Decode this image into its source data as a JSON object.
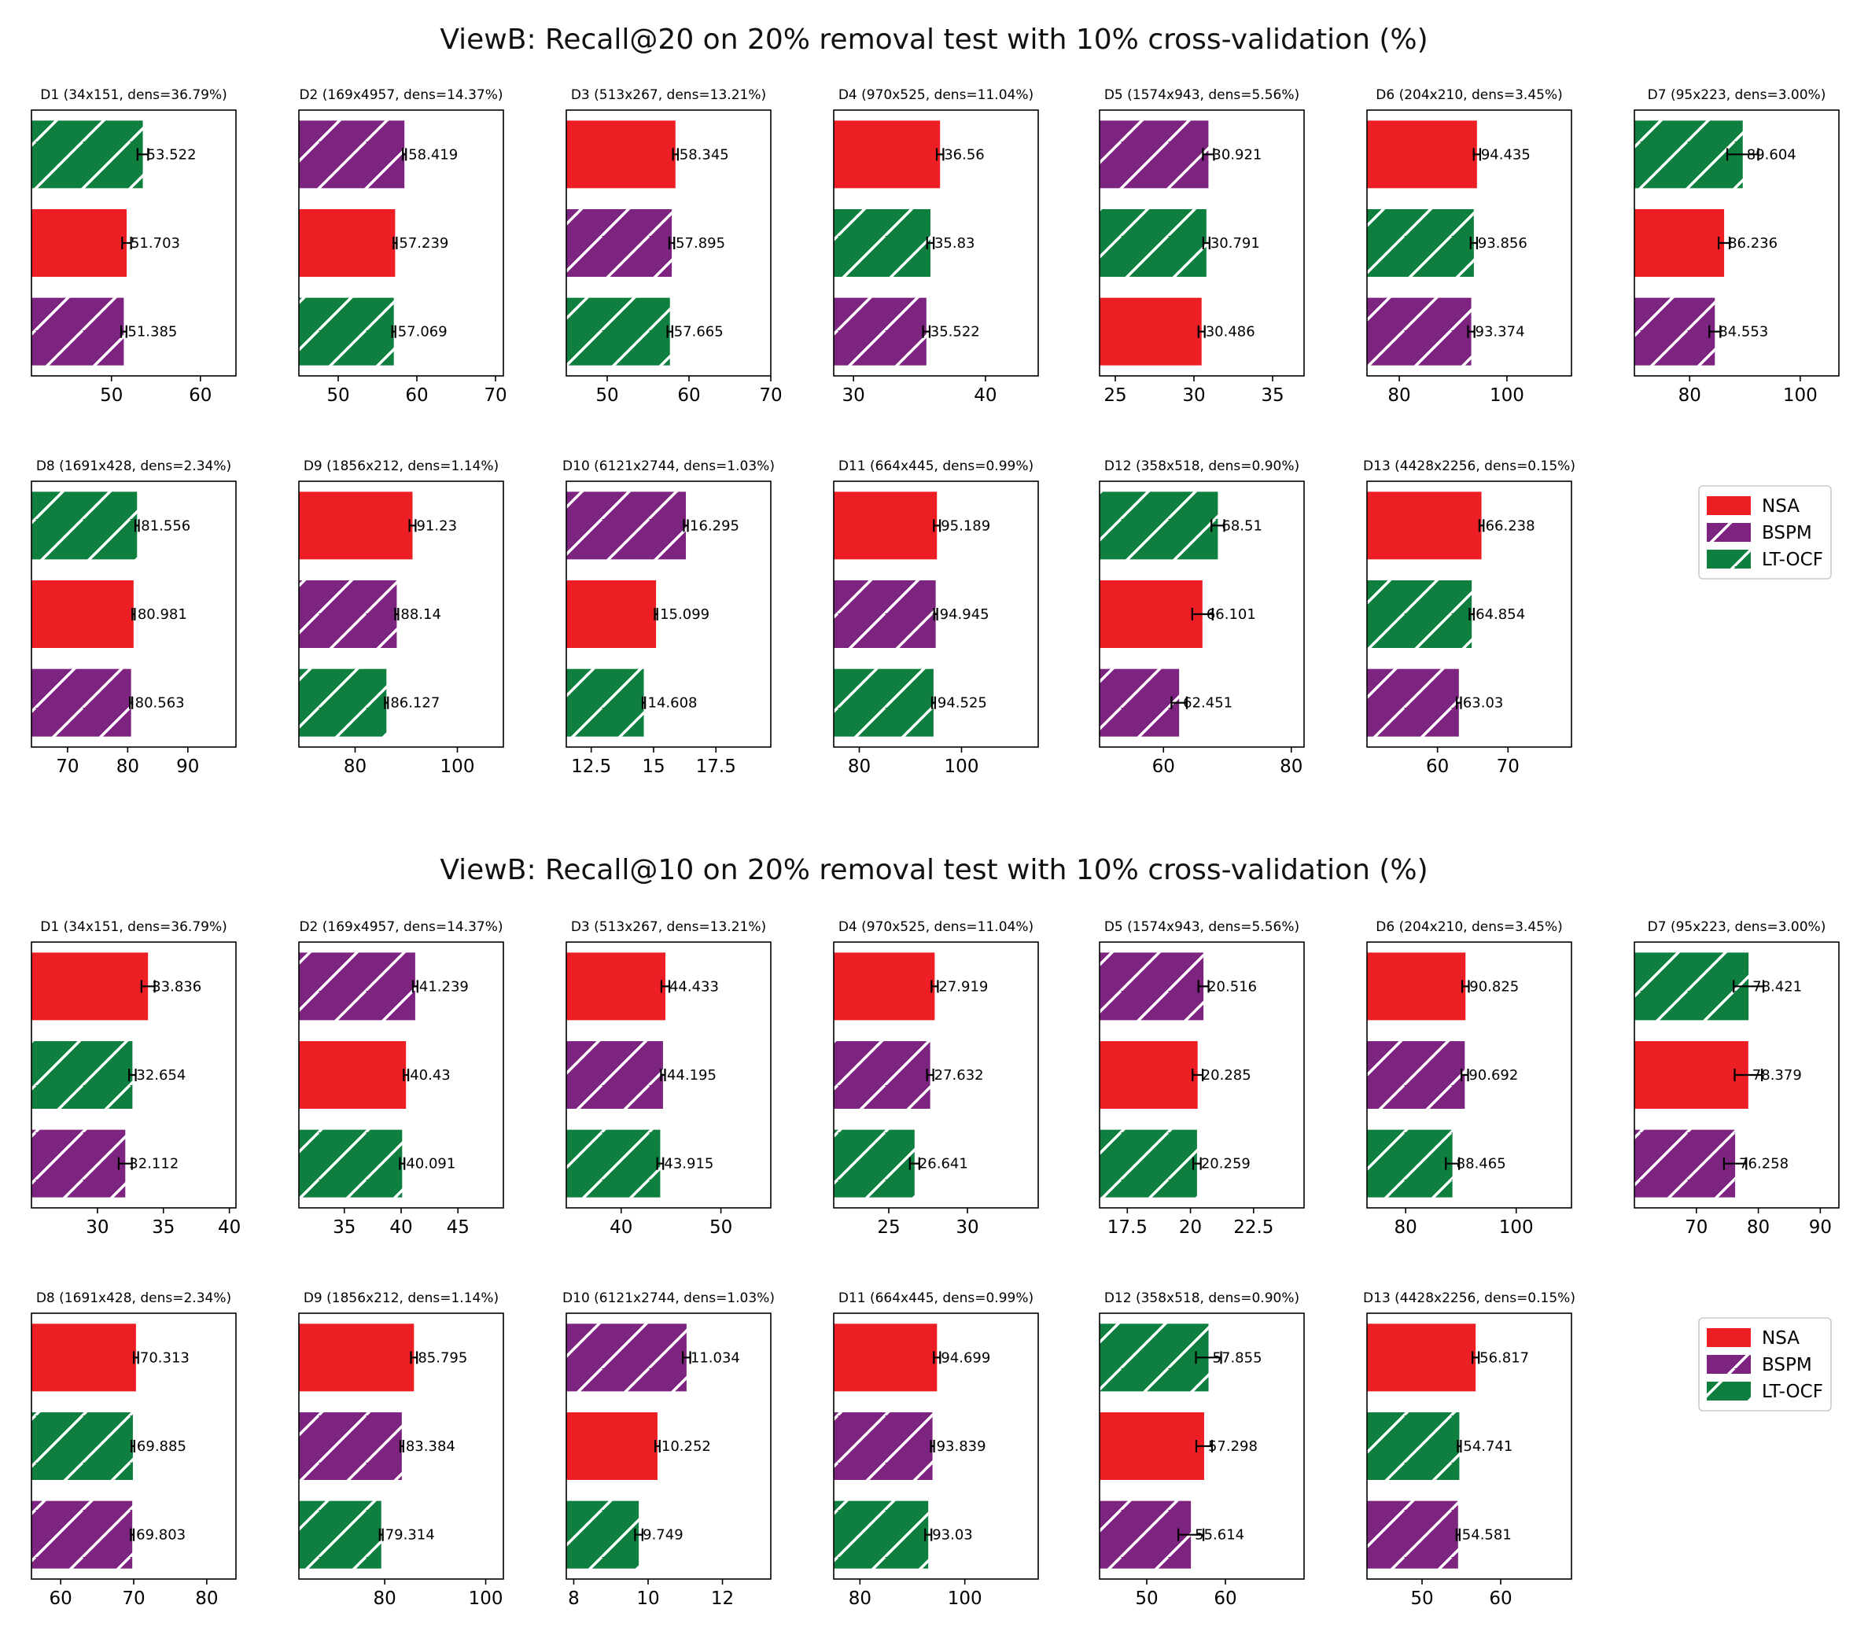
{
  "colors": {
    "NSA": "#ee1f24",
    "BSPM": "#7d2480",
    "LT-OCF": "#0f7f3f"
  },
  "legend": [
    "NSA",
    "BSPM",
    "LT-OCF"
  ],
  "chart_data": [
    {
      "type": "bar",
      "title": "ViewB: Recall@20 on 20% removal test with 10% cross-validation (%)",
      "panels": [
        {
          "title": "D1 (34x151, dens=36.79%)",
          "xlim": [
            41,
            64
          ],
          "ticks": [
            50,
            60
          ],
          "bars": [
            {
              "series": "LT-OCF",
              "value": 53.522,
              "err": 0.6,
              "label": "53.522"
            },
            {
              "series": "NSA",
              "value": 51.703,
              "err": 0.5,
              "label": "51.703"
            },
            {
              "series": "BSPM",
              "value": 51.385,
              "err": 0.3,
              "label": "51.385"
            }
          ]
        },
        {
          "title": "D2 (169x4957, dens=14.37%)",
          "xlim": [
            45,
            71
          ],
          "ticks": [
            50,
            60,
            70
          ],
          "bars": [
            {
              "series": "BSPM",
              "value": 58.419,
              "err": 0.2,
              "label": "58.419"
            },
            {
              "series": "NSA",
              "value": 57.239,
              "err": 0.2,
              "label": "57.239"
            },
            {
              "series": "LT-OCF",
              "value": 57.069,
              "err": 0.2,
              "label": "57.069"
            }
          ]
        },
        {
          "title": "D3 (513x267, dens=13.21%)",
          "xlim": [
            45,
            70
          ],
          "ticks": [
            50,
            60,
            70
          ],
          "bars": [
            {
              "series": "NSA",
              "value": 58.345,
              "err": 0.3,
              "label": "58.345"
            },
            {
              "series": "BSPM",
              "value": 57.895,
              "err": 0.3,
              "label": "57.895"
            },
            {
              "series": "LT-OCF",
              "value": 57.665,
              "err": 0.3,
              "label": "57.665"
            }
          ]
        },
        {
          "title": "D4 (970x525, dens=11.04%)",
          "xlim": [
            28.5,
            44
          ],
          "ticks": [
            30,
            40
          ],
          "bars": [
            {
              "series": "NSA",
              "value": 36.56,
              "err": 0.25,
              "label": "36.56"
            },
            {
              "series": "LT-OCF",
              "value": 35.83,
              "err": 0.25,
              "label": "35.83"
            },
            {
              "series": "BSPM",
              "value": 35.522,
              "err": 0.25,
              "label": "35.522"
            }
          ]
        },
        {
          "title": "D5 (1574x943, dens=5.56%)",
          "xlim": [
            24,
            37
          ],
          "ticks": [
            25,
            30,
            35
          ],
          "bars": [
            {
              "series": "BSPM",
              "value": 30.921,
              "err": 0.35,
              "label": "30.921"
            },
            {
              "series": "LT-OCF",
              "value": 30.791,
              "err": 0.2,
              "label": "30.791"
            },
            {
              "series": "NSA",
              "value": 30.486,
              "err": 0.2,
              "label": "30.486"
            }
          ]
        },
        {
          "title": "D6 (204x210, dens=3.45%)",
          "xlim": [
            74,
            112
          ],
          "ticks": [
            80,
            100
          ],
          "bars": [
            {
              "series": "NSA",
              "value": 94.435,
              "err": 0.6,
              "label": "94.435"
            },
            {
              "series": "LT-OCF",
              "value": 93.856,
              "err": 0.6,
              "label": "93.856"
            },
            {
              "series": "BSPM",
              "value": 93.374,
              "err": 0.6,
              "label": "93.374"
            }
          ]
        },
        {
          "title": "D7 (95x223, dens=3.00%)",
          "xlim": [
            70,
            107
          ],
          "ticks": [
            80,
            100
          ],
          "bars": [
            {
              "series": "LT-OCF",
              "value": 89.604,
              "err": 2.8,
              "label": "89.604"
            },
            {
              "series": "NSA",
              "value": 86.236,
              "err": 1.0,
              "label": "86.236"
            },
            {
              "series": "BSPM",
              "value": 84.553,
              "err": 1.0,
              "label": "84.553"
            }
          ]
        },
        {
          "title": "D8 (1691x428, dens=2.34%)",
          "xlim": [
            64,
            98
          ],
          "ticks": [
            70,
            80,
            90
          ],
          "bars": [
            {
              "series": "LT-OCF",
              "value": 81.556,
              "err": 0.3,
              "label": "81.556"
            },
            {
              "series": "NSA",
              "value": 80.981,
              "err": 0.2,
              "label": "80.981"
            },
            {
              "series": "BSPM",
              "value": 80.563,
              "err": 0.2,
              "label": "80.563"
            }
          ]
        },
        {
          "title": "D9 (1856x212, dens=1.14%)",
          "xlim": [
            69,
            109
          ],
          "ticks": [
            80,
            100
          ],
          "bars": [
            {
              "series": "NSA",
              "value": 91.23,
              "err": 0.6,
              "label": "91.23"
            },
            {
              "series": "BSPM",
              "value": 88.14,
              "err": 0.3,
              "label": "88.14"
            },
            {
              "series": "LT-OCF",
              "value": 86.127,
              "err": 0.3,
              "label": "86.127"
            }
          ]
        },
        {
          "title": "D10 (6121x2744, dens=1.03%)",
          "xlim": [
            11.5,
            19.7
          ],
          "ticks": [
            12.5,
            15.0,
            17.5
          ],
          "bars": [
            {
              "series": "BSPM",
              "value": 16.295,
              "err": 0.08,
              "label": "16.295"
            },
            {
              "series": "NSA",
              "value": 15.099,
              "err": 0.05,
              "label": "15.099"
            },
            {
              "series": "LT-OCF",
              "value": 14.608,
              "err": 0.05,
              "label": "14.608"
            }
          ]
        },
        {
          "title": "D11 (664x445, dens=0.99%)",
          "xlim": [
            75,
            115
          ],
          "ticks": [
            80,
            100
          ],
          "bars": [
            {
              "series": "NSA",
              "value": 95.189,
              "err": 0.6,
              "label": "95.189"
            },
            {
              "series": "BSPM",
              "value": 94.945,
              "err": 0.3,
              "label": "94.945"
            },
            {
              "series": "LT-OCF",
              "value": 94.525,
              "err": 0.3,
              "label": "94.525"
            }
          ]
        },
        {
          "title": "D12 (358x518, dens=0.90%)",
          "xlim": [
            50,
            82
          ],
          "ticks": [
            60,
            80
          ],
          "bars": [
            {
              "series": "LT-OCF",
              "value": 68.51,
              "err": 1.0,
              "label": "68.51"
            },
            {
              "series": "NSA",
              "value": 66.101,
              "err": 1.6,
              "label": "66.101"
            },
            {
              "series": "BSPM",
              "value": 62.451,
              "err": 1.2,
              "label": "62.451"
            }
          ]
        },
        {
          "title": "D13 (4428x2256, dens=0.15%)",
          "xlim": [
            50,
            79
          ],
          "ticks": [
            60,
            70
          ],
          "bars": [
            {
              "series": "NSA",
              "value": 66.238,
              "err": 0.3,
              "label": "66.238"
            },
            {
              "series": "LT-OCF",
              "value": 64.854,
              "err": 0.3,
              "label": "64.854"
            },
            {
              "series": "BSPM",
              "value": 63.03,
              "err": 0.3,
              "label": "63.03"
            }
          ]
        }
      ]
    },
    {
      "type": "bar",
      "title": "ViewB: Recall@10 on 20% removal test with 10% cross-validation (%)",
      "panels": [
        {
          "title": "D1 (34x151, dens=36.79%)",
          "xlim": [
            25,
            40.5
          ],
          "ticks": [
            30,
            35,
            40
          ],
          "bars": [
            {
              "series": "NSA",
              "value": 33.836,
              "err": 0.5,
              "label": "33.836"
            },
            {
              "series": "LT-OCF",
              "value": 32.654,
              "err": 0.25,
              "label": "32.654"
            },
            {
              "series": "BSPM",
              "value": 32.112,
              "err": 0.5,
              "label": "32.112"
            }
          ]
        },
        {
          "title": "D2 (169x4957, dens=14.37%)",
          "xlim": [
            31,
            49
          ],
          "ticks": [
            35,
            40,
            45
          ],
          "bars": [
            {
              "series": "BSPM",
              "value": 41.239,
              "err": 0.2,
              "label": "41.239"
            },
            {
              "series": "NSA",
              "value": 40.43,
              "err": 0.2,
              "label": "40.43"
            },
            {
              "series": "LT-OCF",
              "value": 40.091,
              "err": 0.2,
              "label": "40.091"
            }
          ]
        },
        {
          "title": "D3 (513x267, dens=13.21%)",
          "xlim": [
            34.5,
            55
          ],
          "ticks": [
            40,
            50
          ],
          "bars": [
            {
              "series": "NSA",
              "value": 44.433,
              "err": 0.4,
              "label": "44.433"
            },
            {
              "series": "BSPM",
              "value": 44.195,
              "err": 0.2,
              "label": "44.195"
            },
            {
              "series": "LT-OCF",
              "value": 43.915,
              "err": 0.3,
              "label": "43.915"
            }
          ]
        },
        {
          "title": "D4 (970x525, dens=11.04%)",
          "xlim": [
            21.5,
            34.5
          ],
          "ticks": [
            25,
            30
          ],
          "bars": [
            {
              "series": "NSA",
              "value": 27.919,
              "err": 0.2,
              "label": "27.919"
            },
            {
              "series": "BSPM",
              "value": 27.632,
              "err": 0.2,
              "label": "27.632"
            },
            {
              "series": "LT-OCF",
              "value": 26.641,
              "err": 0.3,
              "label": "26.641"
            }
          ]
        },
        {
          "title": "D5 (1574x943, dens=5.56%)",
          "xlim": [
            16.4,
            24.5
          ],
          "ticks": [
            17.5,
            20.0,
            22.5
          ],
          "bars": [
            {
              "series": "BSPM",
              "value": 20.516,
              "err": 0.2,
              "label": "20.516"
            },
            {
              "series": "NSA",
              "value": 20.285,
              "err": 0.2,
              "label": "20.285"
            },
            {
              "series": "LT-OCF",
              "value": 20.259,
              "err": 0.15,
              "label": "20.259"
            }
          ]
        },
        {
          "title": "D6 (204x210, dens=3.45%)",
          "xlim": [
            73,
            110
          ],
          "ticks": [
            80,
            100
          ],
          "bars": [
            {
              "series": "NSA",
              "value": 90.825,
              "err": 0.6,
              "label": "90.825"
            },
            {
              "series": "BSPM",
              "value": 90.692,
              "err": 0.6,
              "label": "90.692"
            },
            {
              "series": "LT-OCF",
              "value": 88.465,
              "err": 1.2,
              "label": "88.465"
            }
          ]
        },
        {
          "title": "D7 (95x223, dens=3.00%)",
          "xlim": [
            60,
            93
          ],
          "ticks": [
            70,
            80,
            90
          ],
          "bars": [
            {
              "series": "LT-OCF",
              "value": 78.421,
              "err": 2.4,
              "label": "78.421"
            },
            {
              "series": "NSA",
              "value": 78.379,
              "err": 2.2,
              "label": "78.379"
            },
            {
              "series": "BSPM",
              "value": 76.258,
              "err": 1.8,
              "label": "76.258"
            }
          ]
        },
        {
          "title": "D8 (1691x428, dens=2.34%)",
          "xlim": [
            56,
            84
          ],
          "ticks": [
            60,
            70,
            80
          ],
          "bars": [
            {
              "series": "NSA",
              "value": 70.313,
              "err": 0.3,
              "label": "70.313"
            },
            {
              "series": "LT-OCF",
              "value": 69.885,
              "err": 0.2,
              "label": "69.885"
            },
            {
              "series": "BSPM",
              "value": 69.803,
              "err": 0.2,
              "label": "69.803"
            }
          ]
        },
        {
          "title": "D9 (1856x212, dens=1.14%)",
          "xlim": [
            63,
            103.5
          ],
          "ticks": [
            80,
            100
          ],
          "bars": [
            {
              "series": "NSA",
              "value": 85.795,
              "err": 0.6,
              "label": "85.795"
            },
            {
              "series": "BSPM",
              "value": 83.384,
              "err": 0.3,
              "label": "83.384"
            },
            {
              "series": "LT-OCF",
              "value": 79.314,
              "err": 0.3,
              "label": "79.314"
            }
          ]
        },
        {
          "title": "D10 (6121x2744, dens=1.03%)",
          "xlim": [
            7.8,
            13.3
          ],
          "ticks": [
            8,
            10,
            12
          ],
          "bars": [
            {
              "series": "BSPM",
              "value": 11.034,
              "err": 0.1,
              "label": "11.034"
            },
            {
              "series": "NSA",
              "value": 10.252,
              "err": 0.06,
              "label": "10.252"
            },
            {
              "series": "LT-OCF",
              "value": 9.749,
              "err": 0.1,
              "label": "9.749"
            }
          ]
        },
        {
          "title": "D11 (664x445, dens=0.99%)",
          "xlim": [
            75,
            114
          ],
          "ticks": [
            80,
            100
          ],
          "bars": [
            {
              "series": "NSA",
              "value": 94.699,
              "err": 0.6,
              "label": "94.699"
            },
            {
              "series": "BSPM",
              "value": 93.839,
              "err": 0.3,
              "label": "93.839"
            },
            {
              "series": "LT-OCF",
              "value": 93.03,
              "err": 0.6,
              "label": "93.03"
            }
          ]
        },
        {
          "title": "D12 (358x518, dens=0.90%)",
          "xlim": [
            44,
            70
          ],
          "ticks": [
            50,
            60
          ],
          "bars": [
            {
              "series": "LT-OCF",
              "value": 57.855,
              "err": 1.6,
              "label": "57.855"
            },
            {
              "series": "NSA",
              "value": 57.298,
              "err": 1.0,
              "label": "57.298"
            },
            {
              "series": "BSPM",
              "value": 55.614,
              "err": 1.6,
              "label": "55.614"
            }
          ]
        },
        {
          "title": "D13 (4428x2256, dens=0.15%)",
          "xlim": [
            43,
            69
          ],
          "ticks": [
            50,
            60
          ],
          "bars": [
            {
              "series": "NSA",
              "value": 56.817,
              "err": 0.4,
              "label": "56.817"
            },
            {
              "series": "LT-OCF",
              "value": 54.741,
              "err": 0.2,
              "label": "54.741"
            },
            {
              "series": "BSPM",
              "value": 54.581,
              "err": 0.2,
              "label": "54.581"
            }
          ]
        }
      ]
    }
  ]
}
